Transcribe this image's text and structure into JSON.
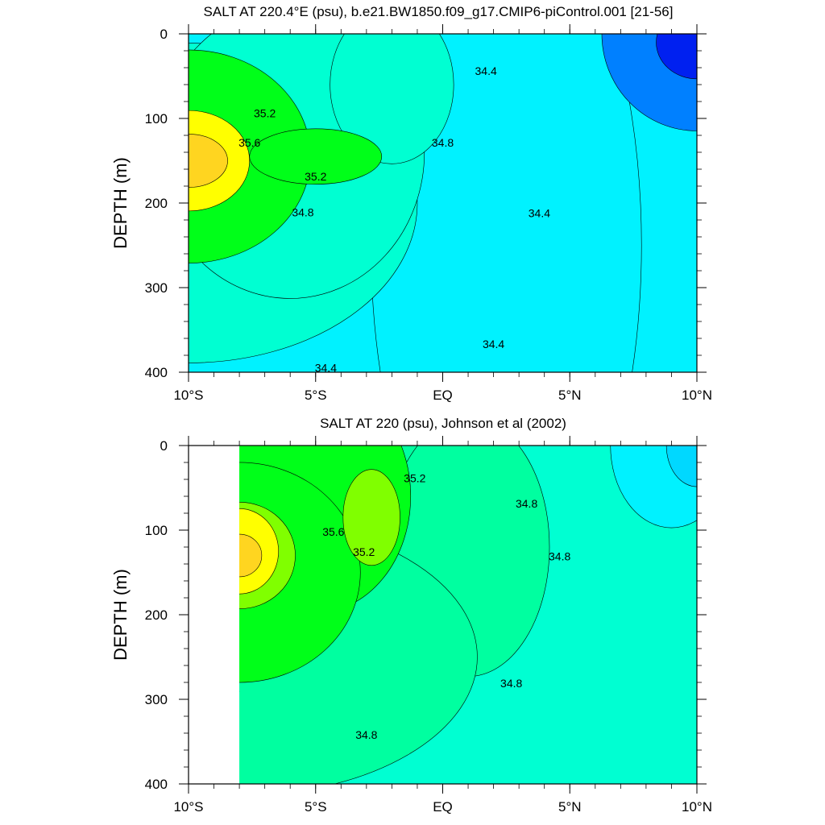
{
  "chart_data": [
    {
      "type": "contour",
      "title": "SALT AT 220.4°E (psu), b.e21.BW1850.f09_g17.CMIP6-piControl.001 [21-56]",
      "ylabel": "DEPTH (m)",
      "xlabel": "",
      "xlim": [
        -10,
        10
      ],
      "ylim": [
        0,
        400
      ],
      "y_reversed": true,
      "x_ticks": [
        {
          "value": -10,
          "label": "10°S"
        },
        {
          "value": -5,
          "label": "5°S"
        },
        {
          "value": 0,
          "label": "EQ"
        },
        {
          "value": 5,
          "label": "5°N"
        },
        {
          "value": 10,
          "label": "10°N"
        }
      ],
      "y_ticks": [
        {
          "value": 0,
          "label": "0"
        },
        {
          "value": 100,
          "label": "100"
        },
        {
          "value": 200,
          "label": "200"
        },
        {
          "value": 300,
          "label": "300"
        },
        {
          "value": 400,
          "label": "400"
        }
      ],
      "data_x_range": [
        -10,
        10
      ],
      "contour_labels": [
        {
          "text": "35.2",
          "x": -7.0,
          "y": 95
        },
        {
          "text": "35.6",
          "x": -7.6,
          "y": 130
        },
        {
          "text": "35.2",
          "x": -5.0,
          "y": 170
        },
        {
          "text": "34.8",
          "x": -5.5,
          "y": 212
        },
        {
          "text": "34.8",
          "x": 0.0,
          "y": 130
        },
        {
          "text": "34.4",
          "x": 1.7,
          "y": 45
        },
        {
          "text": "34.4",
          "x": 3.8,
          "y": 213
        },
        {
          "text": "34.4",
          "x": 2.0,
          "y": 368
        },
        {
          "text": "34.4",
          "x": -4.6,
          "y": 396
        }
      ],
      "fields": [
        {
          "value": 34.4,
          "color": "#00f2ff",
          "contours": [
            {
              "x": -10,
              "y": 320,
              "s": 470,
              "a": 0.8,
              "b": 0.95
            },
            {
              "x": -4,
              "y": 200,
              "s": 420,
              "a": 0.55,
              "b": 1.0
            },
            {
              "x": 2.5,
              "y": 250,
              "s": 380,
              "a": 0.35,
              "b": 1.2
            }
          ]
        },
        {
          "value": 34.8,
          "color": "#00ffd2",
          "contours": [
            {
              "x": -10,
              "y": 200,
              "s": 300,
              "a": 0.75,
              "b": 0.7
            },
            {
              "x": -6,
              "y": 140,
              "s": 240,
              "a": 0.55,
              "b": 0.8
            },
            {
              "x": -2,
              "y": 60,
              "s": 160,
              "a": 0.38,
              "b": 0.65
            }
          ]
        },
        {
          "value": 35.2,
          "color": "#00ff19",
          "contours": [
            {
              "x": -10,
              "y": 145,
              "s": 200,
              "a": 0.6,
              "b": 0.7
            },
            {
              "x": -5,
              "y": 145,
              "s": 130,
              "a": 0.5,
              "b": 0.28
            }
          ]
        },
        {
          "value": 35.6,
          "color": "#ffff00",
          "contours": [
            {
              "x": -10,
              "y": 150,
              "s": 120,
              "a": 0.5,
              "b": 0.55
            }
          ]
        },
        {
          "value": 36.0,
          "color": "#ffd520",
          "contours": [
            {
              "x": -10,
              "y": 150,
              "s": 70,
              "a": 0.55,
              "b": 0.5
            }
          ]
        },
        {
          "value": 34.0,
          "color": "#0080ff",
          "contours": [
            {
              "x": 10,
              "y": 0,
              "s": 170,
              "a": 0.55,
              "b": 0.75
            }
          ]
        },
        {
          "value": 33.6,
          "color": "#0020f0",
          "contours": [
            {
              "x": 10,
              "y": 10,
              "s": 80,
              "a": 0.5,
              "b": 0.6
            }
          ]
        }
      ],
      "levels": [
        33.4,
        33.6,
        33.8,
        34.0,
        34.2,
        34.4,
        34.6,
        34.8,
        35.0,
        35.2,
        35.4,
        35.6,
        35.8,
        36.0
      ],
      "colors": [
        "#0000d0",
        "#0020f0",
        "#0050ff",
        "#0080ff",
        "#00b0ff",
        "#00d8ff",
        "#00f2ff",
        "#00ffd2",
        "#00ffa0",
        "#00ff19",
        "#80ff00",
        "#ffff00",
        "#ffd520",
        "#ffa040",
        "#ff6040"
      ]
    },
    {
      "type": "contour",
      "title": "SALT AT 220 (psu), Johnson et al (2002)",
      "ylabel": "DEPTH (m)",
      "xlabel": "",
      "xlim": [
        -10,
        10
      ],
      "ylim": [
        0,
        400
      ],
      "y_reversed": true,
      "x_ticks": [
        {
          "value": -10,
          "label": "10°S"
        },
        {
          "value": -5,
          "label": "5°S"
        },
        {
          "value": 0,
          "label": "EQ"
        },
        {
          "value": 5,
          "label": "5°N"
        },
        {
          "value": 10,
          "label": "10°N"
        }
      ],
      "y_ticks": [
        {
          "value": 0,
          "label": "0"
        },
        {
          "value": 100,
          "label": "100"
        },
        {
          "value": 200,
          "label": "200"
        },
        {
          "value": 300,
          "label": "300"
        },
        {
          "value": 400,
          "label": "400"
        }
      ],
      "data_x_range": [
        -8,
        10
      ],
      "contour_labels": [
        {
          "text": "35.2",
          "x": -1.1,
          "y": 40
        },
        {
          "text": "34.8",
          "x": 3.3,
          "y": 70
        },
        {
          "text": "35.6",
          "x": -4.3,
          "y": 103
        },
        {
          "text": "35.2",
          "x": -3.1,
          "y": 127
        },
        {
          "text": "34.8",
          "x": 4.6,
          "y": 132
        },
        {
          "text": "34.8",
          "x": 2.7,
          "y": 282
        },
        {
          "text": "34.8",
          "x": -3.0,
          "y": 343
        }
      ],
      "fields": [
        {
          "value": 34.8,
          "color": "#00ffd2",
          "contours": [
            {
              "x": -8,
              "y": 280,
              "s": 400,
              "a": 1.0,
              "b": 1.0
            }
          ]
        },
        {
          "value": 35.0,
          "color": "#00ffa0",
          "contours": [
            {
              "x": -4,
              "y": 160,
              "s": 270,
              "a": 0.5,
              "b": 0.8
            },
            {
              "x": 1.0,
              "y": 120,
              "s": 200,
              "a": 0.4,
              "b": 0.85
            },
            {
              "x": -8,
              "y": 250,
              "s": 260,
              "a": 0.9,
              "b": 0.7
            }
          ]
        },
        {
          "value": 35.2,
          "color": "#00ff19",
          "contours": [
            {
              "x": -5,
              "y": 60,
              "s": 170,
              "a": 0.55,
              "b": 0.9
            },
            {
              "x": -8,
              "y": 150,
              "s": 170,
              "a": 0.7,
              "b": 0.85
            }
          ]
        },
        {
          "value": 35.6,
          "color": "#80ff00",
          "contours": [
            {
              "x": -8,
              "y": 130,
              "s": 100,
              "a": 0.55,
              "b": 0.7
            },
            {
              "x": -2.8,
              "y": 85,
              "s": 70,
              "a": 0.4,
              "b": 0.9
            }
          ]
        },
        {
          "value": 35.8,
          "color": "#ffff00",
          "contours": [
            {
              "x": -8,
              "y": 125,
              "s": 70,
              "a": 0.55,
              "b": 0.8
            }
          ]
        },
        {
          "value": 36.0,
          "color": "#ffd520",
          "contours": [
            {
              "x": -8,
              "y": 130,
              "s": 40,
              "a": 0.55,
              "b": 0.7
            }
          ]
        },
        {
          "value": 34.4,
          "color": "#00f2ff",
          "contours": [
            {
              "x": 9,
              "y": 0,
              "s": 120,
              "a": 0.5,
              "b": 0.9
            }
          ]
        },
        {
          "value": 34.2,
          "color": "#00d8ff",
          "contours": [
            {
              "x": 10,
              "y": 0,
              "s": 60,
              "a": 0.5,
              "b": 0.9
            }
          ]
        }
      ],
      "levels": [
        34.0,
        34.2,
        34.4,
        34.6,
        34.8,
        35.0,
        35.2,
        35.4,
        35.6,
        35.8,
        36.0
      ],
      "colors": [
        "#00b0ff",
        "#00d8ff",
        "#00f2ff",
        "#00ffd2",
        "#00ffd2",
        "#00ffa0",
        "#00ff19",
        "#80ff00",
        "#ffff00",
        "#ffd520",
        "#ffa040",
        "#ff6040"
      ]
    }
  ]
}
